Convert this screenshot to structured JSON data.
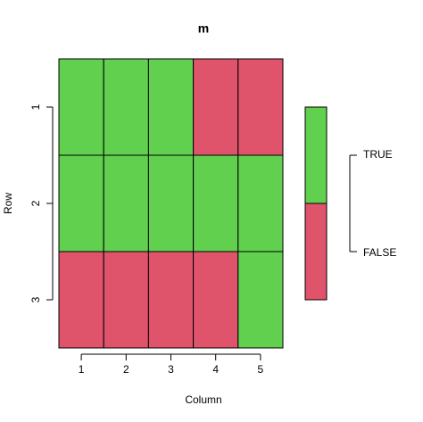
{
  "chart_data": {
    "type": "heatmap",
    "title": "m",
    "x_label": "Column",
    "y_label": "Row",
    "x_categories": [
      "1",
      "2",
      "3",
      "4",
      "5"
    ],
    "y_categories": [
      "1",
      "2",
      "3"
    ],
    "values": [
      [
        true,
        true,
        true,
        false,
        false
      ],
      [
        true,
        true,
        true,
        true,
        true
      ],
      [
        false,
        false,
        false,
        false,
        true
      ]
    ],
    "legend": [
      {
        "value": true,
        "label": "TRUE",
        "color": "#61d04f"
      },
      {
        "value": false,
        "label": "FALSE",
        "color": "#df536b"
      }
    ]
  }
}
